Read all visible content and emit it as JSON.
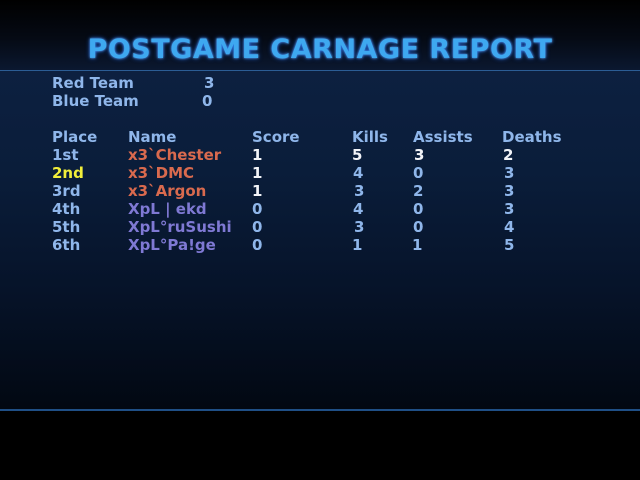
{
  "title": "POSTGAME CARNAGE REPORT",
  "team_scores": [
    {
      "label": "Red Team",
      "score": "3"
    },
    {
      "label": "Blue Team",
      "score": "0"
    }
  ],
  "headers": {
    "place": "Place",
    "name": "Name",
    "score": "Score",
    "kills": "Kills",
    "assists": "Assists",
    "deaths": "Deaths"
  },
  "players": [
    {
      "place": "1st",
      "name": "x3`Chester",
      "score": "1",
      "kills": "5",
      "assists": "3",
      "deaths": "2",
      "team": "red"
    },
    {
      "place": "2nd",
      "name": "x3`DMC",
      "score": "1",
      "kills": "4",
      "assists": "0",
      "deaths": "3",
      "team": "red"
    },
    {
      "place": "3rd",
      "name": "x3`Argon",
      "score": "1",
      "kills": "3",
      "assists": "2",
      "deaths": "3",
      "team": "red"
    },
    {
      "place": "4th",
      "name": "XpL | ekd",
      "score": "0",
      "kills": "4",
      "assists": "0",
      "deaths": "3",
      "team": "blue"
    },
    {
      "place": "5th",
      "name": "XpL°ruSushi",
      "score": "0",
      "kills": "3",
      "assists": "0",
      "deaths": "4",
      "team": "blue"
    },
    {
      "place": "6th",
      "name": "XpL°Pa!ge",
      "score": "0",
      "kills": "1",
      "assists": "1",
      "deaths": "5",
      "team": "blue"
    }
  ],
  "colors": {
    "title": "#3ea8f0",
    "label": "#8fb6ea",
    "red_team": "#d96a4e",
    "blue_team": "#7f79d4",
    "highlight_place": "#f1ee3a",
    "highlight_stat": "#f2f4f8",
    "panel": "#0a1d3a"
  }
}
